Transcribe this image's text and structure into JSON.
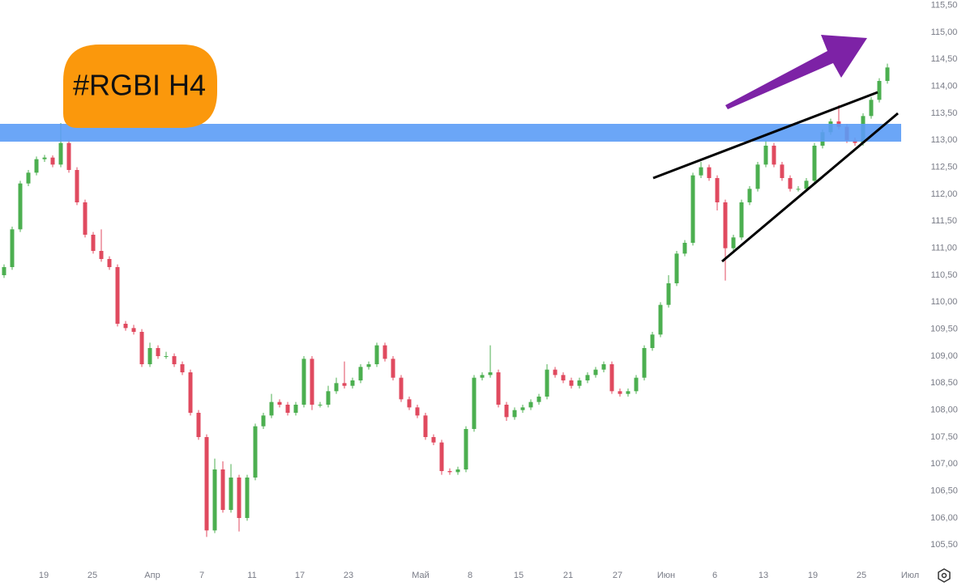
{
  "chart_data": {
    "type": "candlestick",
    "title": "#RGBI H4",
    "up_color": "#4caf50",
    "down_color": "#e04a5f",
    "xlim": [
      -0.5,
      112.5
    ],
    "xticks": [
      {
        "value": 4.9,
        "label": "19"
      },
      {
        "value": 10.9,
        "label": "25"
      },
      {
        "value": 18.3,
        "label": "Апр"
      },
      {
        "value": 24.4,
        "label": "7"
      },
      {
        "value": 30.6,
        "label": "11"
      },
      {
        "value": 36.5,
        "label": "17"
      },
      {
        "value": 42.5,
        "label": "23"
      },
      {
        "value": 51.4,
        "label": "Май"
      },
      {
        "value": 57.5,
        "label": "8"
      },
      {
        "value": 63.5,
        "label": "15"
      },
      {
        "value": 69.6,
        "label": "21"
      },
      {
        "value": 75.7,
        "label": "27"
      },
      {
        "value": 81.7,
        "label": "Июн"
      },
      {
        "value": 87.7,
        "label": "6"
      },
      {
        "value": 93.7,
        "label": "13"
      },
      {
        "value": 99.8,
        "label": "19"
      },
      {
        "value": 105.8,
        "label": "25"
      },
      {
        "value": 111.8,
        "label": "Июл"
      }
    ],
    "ylim": [
      105.25,
      115.6
    ],
    "yticks": [
      {
        "value": 105.5,
        "label": "105,50"
      },
      {
        "value": 106,
        "label": "106,00"
      },
      {
        "value": 106.5,
        "label": "106,50"
      },
      {
        "value": 107,
        "label": "107,00"
      },
      {
        "value": 107.5,
        "label": "107,50"
      },
      {
        "value": 108,
        "label": "108,00"
      },
      {
        "value": 108.5,
        "label": "108,50"
      },
      {
        "value": 109,
        "label": "109,00"
      },
      {
        "value": 109.5,
        "label": "109,50"
      },
      {
        "value": 110,
        "label": "110,00"
      },
      {
        "value": 110.5,
        "label": "110,50"
      },
      {
        "value": 111,
        "label": "111,00"
      },
      {
        "value": 111.5,
        "label": "111,50"
      },
      {
        "value": 112,
        "label": "112,00"
      },
      {
        "value": 112.5,
        "label": "112,50"
      },
      {
        "value": 113,
        "label": "113,00"
      },
      {
        "value": 113.5,
        "label": "113,50"
      },
      {
        "value": 114,
        "label": "114,00"
      },
      {
        "value": 114.5,
        "label": "114,50"
      },
      {
        "value": 115,
        "label": "115,00"
      },
      {
        "value": 115.5,
        "label": "115,50"
      }
    ],
    "open": [
      110.5,
      110.65,
      111.35,
      112.2,
      112.4,
      112.65,
      112.68,
      112.55,
      112.95,
      112.45,
      111.85,
      111.25,
      110.95,
      110.8,
      110.65,
      109.6,
      109.52,
      109.45,
      108.85,
      109.15,
      109.0,
      109.0,
      108.85,
      108.7,
      107.95,
      107.5,
      105.77,
      106.9,
      106.15,
      106.75,
      106.0,
      106.75,
      107.7,
      107.9,
      108.15,
      108.1,
      107.95,
      108.1,
      108.95,
      108.1,
      108.1,
      108.35,
      108.5,
      108.45,
      108.55,
      108.8,
      108.85,
      109.2,
      108.95,
      108.6,
      108.2,
      108.05,
      107.9,
      107.5,
      107.4,
      106.87,
      106.85,
      106.9,
      107.65,
      108.6,
      108.65,
      108.7,
      108.1,
      107.87,
      108.0,
      108.05,
      108.15,
      108.25,
      108.75,
      108.65,
      108.55,
      108.45,
      108.55,
      108.65,
      108.75,
      108.85,
      108.35,
      108.3,
      108.35,
      108.6,
      109.15,
      109.4,
      109.95,
      110.35,
      110.9,
      111.1,
      112.35,
      112.5,
      112.3,
      111.85,
      111.0,
      111.2,
      111.85,
      112.1,
      112.55,
      112.9,
      112.55,
      112.3,
      112.1,
      112.1,
      112.25,
      112.9,
      113.15,
      113.35,
      113.25,
      113.0,
      112.95,
      113.45,
      113.75,
      114.1
    ],
    "high": [
      110.7,
      111.4,
      112.25,
      112.45,
      112.7,
      112.73,
      112.72,
      113.32,
      113.0,
      112.5,
      111.9,
      111.3,
      111.35,
      110.85,
      110.7,
      109.65,
      109.58,
      109.5,
      109.25,
      109.2,
      109.08,
      109.05,
      108.9,
      108.75,
      108.0,
      107.55,
      107.1,
      107.05,
      107.0,
      106.8,
      106.8,
      107.75,
      107.95,
      108.3,
      108.2,
      108.15,
      108.15,
      109.0,
      109.0,
      108.15,
      108.45,
      108.6,
      108.9,
      108.6,
      108.85,
      108.9,
      109.25,
      109.25,
      109.0,
      108.65,
      108.25,
      108.1,
      107.95,
      107.55,
      107.45,
      106.92,
      106.95,
      107.7,
      108.65,
      108.7,
      109.2,
      108.75,
      108.15,
      108.05,
      108.1,
      108.2,
      108.3,
      108.85,
      108.8,
      108.7,
      108.6,
      108.6,
      108.7,
      108.8,
      108.9,
      108.9,
      108.4,
      108.4,
      108.65,
      109.2,
      109.45,
      110.0,
      110.5,
      110.95,
      111.15,
      112.4,
      112.6,
      112.55,
      112.35,
      111.9,
      111.25,
      111.9,
      112.15,
      112.6,
      113.0,
      112.95,
      112.6,
      112.35,
      112.15,
      112.3,
      112.95,
      113.2,
      113.4,
      113.65,
      113.3,
      113.05,
      113.5,
      113.8,
      114.15,
      114.42
    ],
    "low": [
      110.45,
      110.6,
      111.3,
      112.15,
      112.35,
      112.6,
      112.5,
      112.5,
      112.4,
      111.8,
      111.2,
      110.9,
      110.75,
      110.6,
      109.55,
      109.47,
      109.4,
      108.8,
      108.8,
      108.95,
      108.95,
      108.8,
      108.65,
      107.9,
      107.45,
      105.65,
      105.72,
      106.1,
      106.1,
      105.75,
      105.95,
      106.7,
      107.65,
      107.85,
      108.05,
      107.9,
      107.9,
      108.05,
      108.0,
      108.05,
      108.05,
      108.3,
      108.4,
      108.4,
      108.5,
      108.75,
      108.8,
      108.9,
      108.55,
      108.15,
      108.0,
      107.85,
      107.45,
      107.35,
      106.8,
      106.8,
      106.8,
      106.85,
      107.6,
      108.55,
      108.6,
      108.05,
      107.8,
      107.82,
      107.95,
      108.0,
      108.1,
      108.2,
      108.6,
      108.5,
      108.4,
      108.4,
      108.5,
      108.6,
      108.7,
      108.3,
      108.25,
      108.25,
      108.3,
      108.55,
      109.1,
      109.35,
      109.9,
      110.3,
      110.85,
      111.05,
      112.3,
      112.25,
      111.7,
      110.4,
      110.95,
      111.15,
      111.8,
      112.05,
      112.5,
      112.5,
      112.25,
      112.05,
      112.05,
      112.05,
      112.2,
      112.85,
      113.1,
      113.2,
      112.95,
      112.9,
      112.9,
      113.4,
      113.7,
      114.05
    ],
    "close": [
      110.65,
      111.35,
      112.2,
      112.4,
      112.65,
      112.68,
      112.55,
      112.95,
      112.45,
      111.85,
      111.25,
      110.95,
      110.8,
      110.65,
      109.6,
      109.52,
      109.45,
      108.85,
      109.15,
      109.0,
      109.0,
      108.85,
      108.7,
      107.95,
      107.5,
      105.77,
      106.9,
      106.15,
      106.75,
      106.0,
      106.75,
      107.7,
      107.9,
      108.15,
      108.1,
      107.95,
      108.1,
      108.95,
      108.1,
      108.1,
      108.35,
      108.5,
      108.45,
      108.55,
      108.8,
      108.85,
      109.2,
      108.95,
      108.6,
      108.2,
      108.05,
      107.9,
      107.5,
      107.4,
      106.87,
      106.85,
      106.9,
      107.65,
      108.6,
      108.65,
      108.7,
      108.1,
      107.87,
      108.0,
      108.05,
      108.15,
      108.25,
      108.75,
      108.65,
      108.55,
      108.45,
      108.55,
      108.65,
      108.75,
      108.85,
      108.35,
      108.3,
      108.35,
      108.6,
      109.15,
      109.4,
      109.95,
      110.35,
      110.9,
      111.1,
      112.35,
      112.5,
      112.3,
      111.85,
      111.0,
      111.2,
      111.85,
      112.1,
      112.55,
      112.9,
      112.55,
      112.3,
      112.1,
      112.1,
      112.25,
      112.9,
      113.15,
      113.35,
      113.25,
      113.0,
      112.95,
      113.45,
      113.75,
      114.1,
      114.35
    ]
  }
}
